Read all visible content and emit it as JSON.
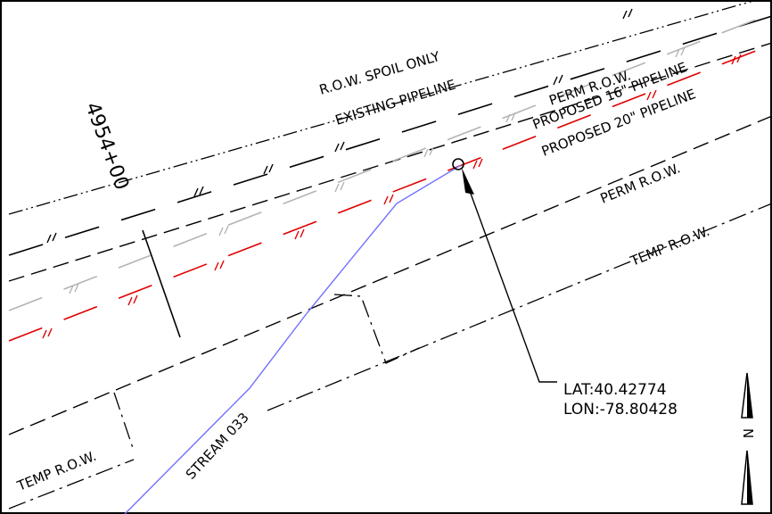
{
  "labels": {
    "station": "4954+00",
    "row_spoil_only": "R.O.W. SPOIL ONLY",
    "existing_pipeline": "EXISTING PIPELINE",
    "perm_row_top": "PERM R.O.W.",
    "proposed_16": "PROPOSED 16\" PIPELINE",
    "proposed_20": "PROPOSED 20\" PIPELINE",
    "perm_row_mid": "PERM R.O.W.",
    "temp_row_right": "TEMP R.O.W.",
    "temp_row_left": "TEMP R.O.W.",
    "stream": "STREAM 033",
    "north_label": "N"
  },
  "crossing_point": {
    "lat": "LAT:40.42774",
    "lon": "LON:-78.80428"
  },
  "colors": {
    "background": "#ffffff",
    "linework": "#000000",
    "existing_pipeline_gray": "#b4b4b4",
    "proposed_pipeline_red": "#e00000",
    "stream_blue": "#7070ff"
  }
}
